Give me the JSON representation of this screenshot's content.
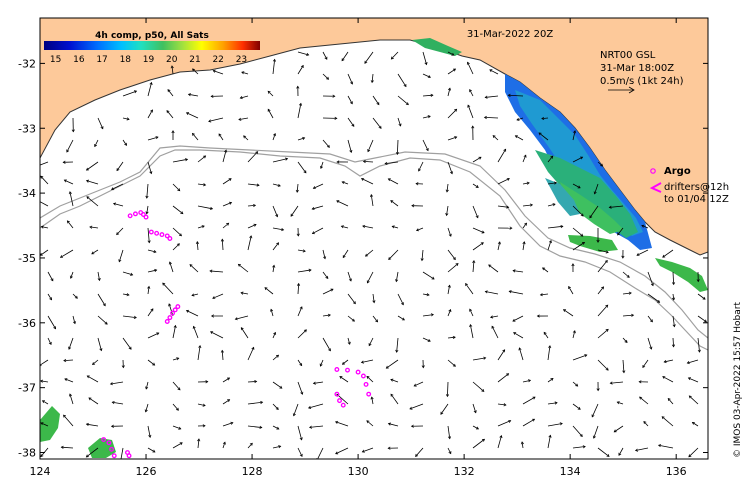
{
  "map": {
    "title": "31-Mar-2022 20Z",
    "lon_range": [
      124,
      136.6
    ],
    "lat_range": [
      -38.1,
      -31.3
    ],
    "lon_ticks": [
      "124",
      "126",
      "128",
      "130",
      "132",
      "134",
      "136"
    ],
    "lat_ticks": [
      "-32",
      "-33",
      "-34",
      "-35",
      "-36",
      "-37",
      "-38"
    ],
    "colors": {
      "land": "#fdc99a",
      "coast": "#333333",
      "bathymetry": "#a0a0a0",
      "argo": "#ff00ff",
      "vector": "#000000"
    }
  },
  "colorbar": {
    "title": "4h comp, p50, All Sats",
    "ticks": [
      "15",
      "16",
      "17",
      "18",
      "19",
      "20",
      "21",
      "22",
      "23"
    ],
    "range": [
      14.5,
      23.8
    ]
  },
  "current_legend": {
    "line1": "NRT00 GSL",
    "line2": "31-Mar 18:00Z",
    "line3": "0.5m/s (1kt 24h)"
  },
  "argo_legend": {
    "label": "Argo",
    "line2": "drifters@12h",
    "line3": "to 01/04 12Z"
  },
  "credit": "© IMOS 03-Apr-2022 15:57 Hobart",
  "drifter_tracks": [
    [
      [
        125.7,
        -34.35
      ],
      [
        125.8,
        -34.32
      ],
      [
        125.9,
        -34.3
      ],
      [
        125.95,
        -34.33
      ],
      [
        126.0,
        -34.37
      ]
    ],
    [
      [
        126.1,
        -34.6
      ],
      [
        126.2,
        -34.62
      ],
      [
        126.3,
        -34.64
      ],
      [
        126.4,
        -34.66
      ],
      [
        126.45,
        -34.7
      ]
    ],
    [
      [
        126.6,
        -35.75
      ],
      [
        126.55,
        -35.8
      ],
      [
        126.5,
        -35.85
      ],
      [
        126.45,
        -35.92
      ],
      [
        126.4,
        -35.98
      ]
    ],
    [
      [
        129.6,
        -36.72
      ],
      [
        129.8,
        -36.73
      ],
      [
        130.0,
        -36.76
      ],
      [
        130.1,
        -36.82
      ],
      [
        130.15,
        -36.95
      ],
      [
        130.2,
        -37.1
      ]
    ],
    [
      [
        129.6,
        -37.1
      ],
      [
        129.65,
        -37.2
      ],
      [
        129.72,
        -37.27
      ]
    ],
    [
      [
        125.2,
        -37.8
      ],
      [
        125.3,
        -37.85
      ],
      [
        125.35,
        -37.95
      ],
      [
        125.4,
        -38.05
      ]
    ],
    [
      [
        125.65,
        -38.0
      ],
      [
        125.68,
        -38.05
      ]
    ]
  ]
}
